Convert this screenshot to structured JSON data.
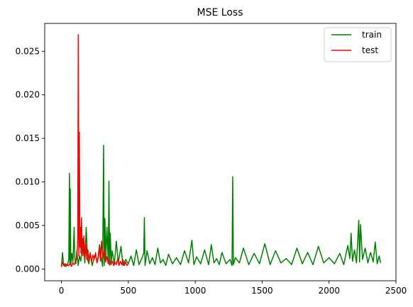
{
  "chart_data": {
    "type": "line",
    "title": "MSE Loss",
    "xlabel": "",
    "ylabel": "",
    "xlim": [
      -125,
      2500
    ],
    "ylim": [
      -0.00135,
      0.0282
    ],
    "xticks": [
      0,
      500,
      1000,
      1500,
      2000,
      2500
    ],
    "xtick_labels": [
      "0",
      "500",
      "1000",
      "1500",
      "2000",
      "2500"
    ],
    "yticks": [
      0.0,
      0.005,
      0.01,
      0.015,
      0.02,
      0.025
    ],
    "ytick_labels": [
      "0.000",
      "0.005",
      "0.010",
      "0.015",
      "0.020",
      "0.025"
    ],
    "grid": false,
    "legend": {
      "position": "top-right"
    },
    "series": [
      {
        "name": "train",
        "color": "#008000",
        "x": [
          0,
          8,
          16,
          25,
          35,
          45,
          55,
          60,
          63,
          66,
          70,
          78,
          86,
          95,
          100,
          108,
          115,
          125,
          135,
          145,
          160,
          175,
          185,
          195,
          205,
          215,
          230,
          250,
          270,
          285,
          300,
          308,
          315,
          320,
          325,
          332,
          340,
          350,
          355,
          360,
          365,
          372,
          380,
          395,
          410,
          425,
          445,
          460,
          480,
          500,
          520,
          540,
          560,
          580,
          600,
          615,
          620,
          625,
          640,
          660,
          680,
          700,
          720,
          740,
          760,
          780,
          800,
          830,
          860,
          890,
          920,
          950,
          975,
          990,
          1010,
          1040,
          1070,
          1100,
          1120,
          1140,
          1160,
          1180,
          1200,
          1230,
          1260,
          1275,
          1280,
          1285,
          1300,
          1330,
          1360,
          1400,
          1440,
          1480,
          1520,
          1560,
          1600,
          1640,
          1680,
          1720,
          1760,
          1800,
          1840,
          1880,
          1920,
          1960,
          2000,
          2040,
          2080,
          2110,
          2140,
          2155,
          2165,
          2175,
          2190,
          2205,
          2215,
          2222,
          2228,
          2235,
          2250,
          2270,
          2290,
          2310,
          2330,
          2345,
          2360,
          2375,
          2385
        ],
        "values": [
          0.0002,
          0.0019,
          0.0005,
          0.0003,
          0.0006,
          0.0004,
          0.0011,
          0.011,
          0.0006,
          0.0092,
          0.0005,
          0.0018,
          0.0008,
          0.0048,
          0.0012,
          0.0006,
          0.0021,
          0.0004,
          0.0015,
          0.0009,
          0.0035,
          0.0007,
          0.0048,
          0.0011,
          0.0006,
          0.0019,
          0.0004,
          0.0016,
          0.0009,
          0.0028,
          0.0011,
          0.0003,
          0.0142,
          0.0004,
          0.0058,
          0.0012,
          0.0048,
          0.0006,
          0.0101,
          0.0004,
          0.0041,
          0.0008,
          0.0021,
          0.0005,
          0.0032,
          0.0007,
          0.0026,
          0.0004,
          0.0011,
          0.0006,
          0.0015,
          0.0004,
          0.0022,
          0.0005,
          0.0012,
          0.0018,
          0.0059,
          0.0004,
          0.0021,
          0.0006,
          0.0013,
          0.0005,
          0.0024,
          0.0007,
          0.0011,
          0.0004,
          0.0017,
          0.0006,
          0.0013,
          0.0005,
          0.0021,
          0.0007,
          0.0033,
          0.0005,
          0.0014,
          0.0006,
          0.0022,
          0.0005,
          0.0028,
          0.0007,
          0.0012,
          0.0005,
          0.0019,
          0.0006,
          0.0011,
          0.0004,
          0.0106,
          0.0005,
          0.0013,
          0.0007,
          0.0024,
          0.0005,
          0.0018,
          0.0006,
          0.0029,
          0.0005,
          0.0021,
          0.0007,
          0.0012,
          0.0005,
          0.0024,
          0.0006,
          0.0019,
          0.0005,
          0.0026,
          0.0007,
          0.0013,
          0.0006,
          0.0018,
          0.0005,
          0.0027,
          0.0012,
          0.0041,
          0.0009,
          0.0022,
          0.0007,
          0.0035,
          0.0056,
          0.0008,
          0.0051,
          0.0011,
          0.0024,
          0.0007,
          0.0019,
          0.0008,
          0.0031,
          0.0006,
          0.0015,
          0.0007
        ]
      },
      {
        "name": "test",
        "color": "#ff0000",
        "x": [
          0,
          8,
          16,
          25,
          35,
          45,
          55,
          65,
          75,
          85,
          95,
          105,
          112,
          118,
          122,
          126,
          130,
          134,
          138,
          142,
          146,
          150,
          155,
          160,
          168,
          175,
          182,
          190,
          198,
          205,
          215,
          225,
          235,
          245,
          255,
          265,
          275,
          285,
          292,
          300,
          310,
          320,
          330,
          340,
          350,
          360,
          370,
          380,
          390,
          400,
          410,
          420,
          430,
          440,
          450,
          460,
          470,
          480,
          490,
          500
        ],
        "values": [
          0.0003,
          0.0008,
          0.0004,
          0.0006,
          0.0003,
          0.0005,
          0.0004,
          0.0006,
          0.0003,
          0.0007,
          0.0005,
          0.0009,
          0.0011,
          0.0022,
          0.0035,
          0.0269,
          0.0015,
          0.0157,
          0.0025,
          0.0048,
          0.0018,
          0.0059,
          0.0028,
          0.0015,
          0.0038,
          0.0012,
          0.0029,
          0.0011,
          0.0022,
          0.0009,
          0.0018,
          0.0008,
          0.0016,
          0.0011,
          0.0019,
          0.0007,
          0.0013,
          0.0024,
          0.0009,
          0.0032,
          0.0012,
          0.0022,
          0.0008,
          0.0014,
          0.0006,
          0.0011,
          0.0005,
          0.0009,
          0.0004,
          0.0008,
          0.0005,
          0.0012,
          0.0004,
          0.0009,
          0.0005,
          0.0011,
          0.0004,
          0.0008,
          0.0004,
          0.0006
        ]
      }
    ]
  }
}
